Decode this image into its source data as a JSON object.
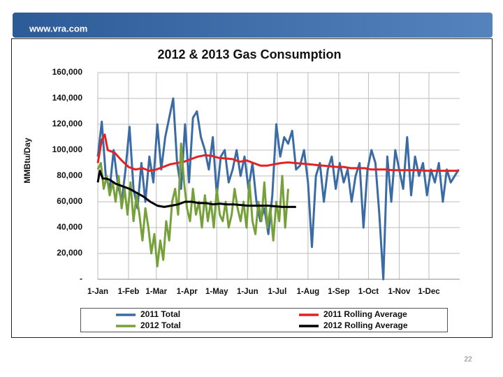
{
  "header": "www.vra.com",
  "page_number": "22",
  "chart_data": {
    "type": "line",
    "title": "2012 & 2013 Gas Consumption",
    "y_label": "MMBtu/Day",
    "xlim": [
      0,
      365
    ],
    "ylim": [
      0,
      160000
    ],
    "xticks": [
      {
        "value": 0,
        "label": "1-Jan"
      },
      {
        "value": 31,
        "label": "1-Feb"
      },
      {
        "value": 59,
        "label": "1-Mar"
      },
      {
        "value": 90,
        "label": "1-Apr"
      },
      {
        "value": 120,
        "label": "1-May"
      },
      {
        "value": 151,
        "label": "1-Jun"
      },
      {
        "value": 181,
        "label": "1-Jul"
      },
      {
        "value": 212,
        "label": "1-Aug"
      },
      {
        "value": 243,
        "label": "1-Sep"
      },
      {
        "value": 273,
        "label": "1-Oct"
      },
      {
        "value": 304,
        "label": "1-Nov"
      },
      {
        "value": 334,
        "label": "1-Dec"
      }
    ],
    "yticks": [
      {
        "value": 0,
        "label": "-"
      },
      {
        "value": 20000,
        "label": "20,000"
      },
      {
        "value": 40000,
        "label": "40,000"
      },
      {
        "value": 60000,
        "label": "60,000"
      },
      {
        "value": 80000,
        "label": "80,000"
      },
      {
        "value": 100000,
        "label": "100,000"
      },
      {
        "value": 120000,
        "label": "120,000"
      },
      {
        "value": 140000,
        "label": "140,000"
      },
      {
        "value": 160000,
        "label": "160,000"
      }
    ],
    "grid": true,
    "legend": "bottom",
    "series": [
      {
        "name": "2011 Total",
        "color": "#3b6ba5",
        "x": [
          0,
          4,
          8,
          12,
          16,
          20,
          24,
          28,
          32,
          36,
          40,
          44,
          48,
          52,
          56,
          60,
          64,
          68,
          72,
          76,
          80,
          84,
          88,
          92,
          96,
          100,
          104,
          108,
          112,
          116,
          120,
          124,
          128,
          132,
          136,
          140,
          144,
          148,
          152,
          156,
          160,
          164,
          168,
          172,
          176,
          180,
          184,
          188,
          192,
          196,
          200,
          204,
          208,
          212,
          216,
          220,
          224,
          228,
          232,
          236,
          240,
          244,
          248,
          252,
          256,
          260,
          264,
          268,
          272,
          276,
          280,
          284,
          288,
          292,
          296,
          300,
          304,
          308,
          312,
          316,
          320,
          324,
          328,
          332,
          336,
          340,
          344,
          348,
          352,
          356,
          360,
          364
        ],
        "values": [
          95000,
          122000,
          80000,
          70000,
          100000,
          75000,
          60000,
          85000,
          118000,
          70000,
          55000,
          90000,
          60000,
          95000,
          75000,
          120000,
          85000,
          110000,
          125000,
          140000,
          90000,
          70000,
          120000,
          75000,
          125000,
          130000,
          110000,
          100000,
          85000,
          110000,
          65000,
          95000,
          100000,
          75000,
          85000,
          100000,
          80000,
          95000,
          70000,
          90000,
          60000,
          45000,
          55000,
          35000,
          65000,
          120000,
          95000,
          110000,
          105000,
          115000,
          85000,
          88000,
          100000,
          75000,
          25000,
          80000,
          90000,
          60000,
          85000,
          95000,
          70000,
          90000,
          75000,
          85000,
          60000,
          80000,
          90000,
          40000,
          85000,
          100000,
          90000,
          50000,
          0,
          95000,
          60000,
          100000,
          85000,
          70000,
          110000,
          65000,
          95000,
          80000,
          90000,
          65000,
          85000,
          75000,
          90000,
          60000,
          85000,
          75000,
          80000,
          85000
        ]
      },
      {
        "name": "2011 Rolling Average",
        "color": "#e02424",
        "x": [
          0,
          4,
          7,
          10,
          17,
          24,
          31,
          38,
          45,
          52,
          59,
          66,
          73,
          80,
          87,
          94,
          101,
          108,
          115,
          122,
          129,
          136,
          143,
          150,
          157,
          164,
          171,
          178,
          185,
          192,
          199,
          206,
          213,
          220,
          227,
          234,
          241,
          248,
          255,
          262,
          269,
          276,
          283,
          290,
          297,
          304,
          311,
          318,
          325,
          332,
          339,
          346,
          353,
          360,
          364
        ],
        "values": [
          90000,
          108000,
          112000,
          100000,
          98000,
          92000,
          87000,
          85000,
          86000,
          84000,
          85000,
          87000,
          89000,
          90000,
          91000,
          93000,
          95000,
          96000,
          95500,
          94000,
          93500,
          93000,
          91000,
          92000,
          90000,
          88000,
          88000,
          89000,
          90000,
          90500,
          90000,
          89500,
          89000,
          88500,
          88000,
          87500,
          87000,
          87000,
          86000,
          86000,
          86000,
          85000,
          85000,
          85000,
          84500,
          84500,
          84500,
          84500,
          84500,
          84000,
          84000,
          84000,
          84000,
          84000,
          84000
        ]
      },
      {
        "name": "2012 Total",
        "color": "#76a03a",
        "x": [
          0,
          3,
          6,
          9,
          12,
          15,
          18,
          21,
          24,
          27,
          30,
          33,
          36,
          39,
          42,
          45,
          48,
          51,
          54,
          57,
          60,
          63,
          66,
          69,
          72,
          75,
          78,
          81,
          84,
          87,
          90,
          93,
          96,
          99,
          102,
          105,
          108,
          111,
          114,
          117,
          120,
          123,
          126,
          129,
          132,
          135,
          138,
          141,
          144,
          147,
          150,
          153,
          156,
          159,
          162,
          165,
          168,
          171,
          174,
          177,
          180,
          183,
          186,
          189,
          192
        ],
        "values": [
          85000,
          90000,
          70000,
          80000,
          65000,
          75000,
          60000,
          80000,
          55000,
          70000,
          50000,
          75000,
          45000,
          65000,
          50000,
          30000,
          55000,
          40000,
          20000,
          35000,
          10000,
          30000,
          15000,
          45000,
          30000,
          60000,
          70000,
          50000,
          105000,
          75000,
          55000,
          45000,
          70000,
          50000,
          60000,
          40000,
          65000,
          45000,
          60000,
          40000,
          70000,
          50000,
          45000,
          60000,
          40000,
          50000,
          70000,
          55000,
          45000,
          60000,
          40000,
          75000,
          45000,
          35000,
          60000,
          45000,
          75000,
          40000,
          55000,
          30000,
          60000,
          45000,
          80000,
          40000,
          70000
        ]
      },
      {
        "name": "2012 Rolling Average",
        "color": "#000000",
        "x": [
          0,
          2,
          5,
          8,
          12,
          18,
          25,
          32,
          39,
          46,
          53,
          60,
          67,
          74,
          81,
          88,
          95,
          102,
          109,
          116,
          123,
          130,
          137,
          144,
          151,
          158,
          165,
          172,
          179,
          186,
          193,
          200
        ],
        "values": [
          75000,
          84000,
          78000,
          78000,
          77000,
          74000,
          72000,
          70000,
          67000,
          64000,
          60000,
          57000,
          56000,
          57000,
          58000,
          60000,
          60000,
          59000,
          59000,
          58000,
          58500,
          58000,
          58000,
          57500,
          57000,
          57000,
          57000,
          57000,
          56500,
          56000,
          56000,
          56000
        ]
      }
    ]
  }
}
